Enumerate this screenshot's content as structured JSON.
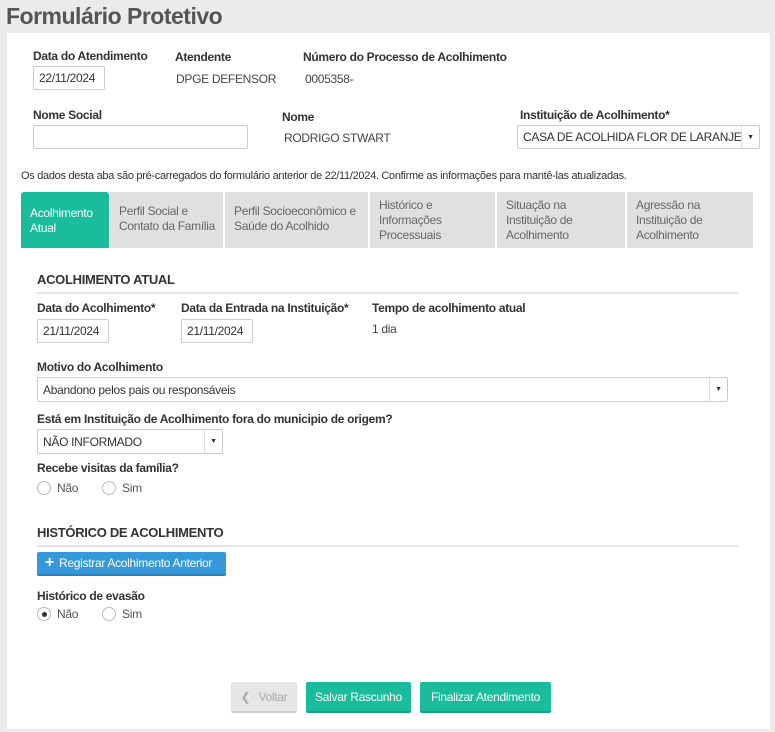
{
  "title": "Formulário Protetivo",
  "header": {
    "data_atendimento_label": "Data do Atendimento",
    "data_atendimento": "22/11/2024",
    "atendente_label": "Atendente",
    "atendente": "DPGE DEFENSOR",
    "processo_label": "Número do Processo de Acolhimento",
    "processo": "0005358-",
    "nome_social_label": "Nome Social",
    "nome_social": "",
    "nome_label": "Nome",
    "nome": "RODRIGO STWART",
    "instituicao_label": "Instituição de Acolhimento*",
    "instituicao": "CASA DE ACOLHIDA FLOR DE LARANJEIRA"
  },
  "notice": "Os dados desta aba são pré-carregados do formulário anterior de 22/11/2024. Confirme as informações para mantê-las atualizadas.",
  "tabs": [
    {
      "label": "Acolhimento Atual",
      "active": true
    },
    {
      "label": "Perfil Social e Contato da Família"
    },
    {
      "label": "Perfil Socioeconômico e Saúde do Acolhido"
    },
    {
      "label": "Histórico e Informações Processuais"
    },
    {
      "label": "Situação na Instituição de Acolhimento"
    },
    {
      "label": "Agressão na Instituição de Acolhimento"
    }
  ],
  "atual": {
    "section": "ACOLHIMENTO ATUAL",
    "data_acolhimento_label": "Data do Acolhimento*",
    "data_acolhimento": "21/11/2024",
    "data_entrada_label": "Data da Entrada na Instituição*",
    "data_entrada": "21/11/2024",
    "tempo_label": "Tempo de acolhimento atual",
    "tempo": "1 dia",
    "motivo_label": "Motivo do Acolhimento",
    "motivo": "Abandono pelos pais ou responsáveis",
    "fora_label": "Está em Instituição de Acolhimento fora do municipio de origem?",
    "fora": "NÃO INFORMADO",
    "visitas_label": "Recebe visitas da família?",
    "visitas_options": [
      "Não",
      "Sim"
    ],
    "visitas_selected": null
  },
  "historico": {
    "section": "HISTÓRICO DE ACOLHIMENTO",
    "registrar": "Registrar Acolhimento Anterior",
    "evasao_label": "Histórico de evasão",
    "evasao_options": [
      "Não",
      "Sim"
    ],
    "evasao_selected": "Não"
  },
  "footer": {
    "voltar": "Voltar",
    "salvar": "Salvar Rascunho",
    "finalizar": "Finalizar Atendimento"
  },
  "colors": {
    "accent": "#1abc9c",
    "primary": "#3498db"
  }
}
